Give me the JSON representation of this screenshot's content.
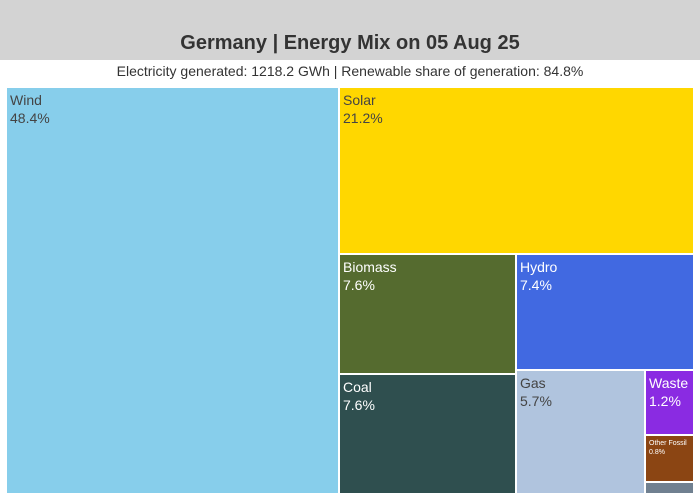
{
  "header": {
    "title": "Germany | Energy Mix on 05 Aug 25",
    "subtitle": "Electricity generated: 1218.2 GWh | Renewable share of generation: 84.8%"
  },
  "chart_data": {
    "type": "treemap",
    "title": "Germany | Energy Mix on 05 Aug 25",
    "subtitle": "Electricity generated: 1218.2 GWh | Renewable share of generation: 84.8%",
    "unit": "%",
    "slices": [
      {
        "name": "Wind",
        "value": 48.4,
        "label": "48.4%",
        "color": "#87ceeb",
        "text_color": "#444444"
      },
      {
        "name": "Solar",
        "value": 21.2,
        "label": "21.2%",
        "color": "#ffd700",
        "text_color": "#444444"
      },
      {
        "name": "Biomass",
        "value": 7.6,
        "label": "7.6%",
        "color": "#556b2f",
        "text_color": "#ffffff"
      },
      {
        "name": "Hydro",
        "value": 7.4,
        "label": "7.4%",
        "color": "#4169e1",
        "text_color": "#ffffff"
      },
      {
        "name": "Coal",
        "value": 7.6,
        "label": "7.6%",
        "color": "#2f4f4f",
        "text_color": "#ffffff"
      },
      {
        "name": "Gas",
        "value": 5.7,
        "label": "5.7%",
        "color": "#b0c4de",
        "text_color": "#444444"
      },
      {
        "name": "Waste",
        "value": 1.2,
        "label": "1.2%",
        "color": "#8a2be2",
        "text_color": "#ffffff"
      },
      {
        "name": "Other Fossil",
        "value": 0.8,
        "label": "0.8%",
        "color": "#8b4513",
        "text_color": "#ffffff"
      },
      {
        "name": "",
        "value": 0.1,
        "label": "",
        "color": "#708090",
        "text_color": "#ffffff"
      }
    ]
  }
}
